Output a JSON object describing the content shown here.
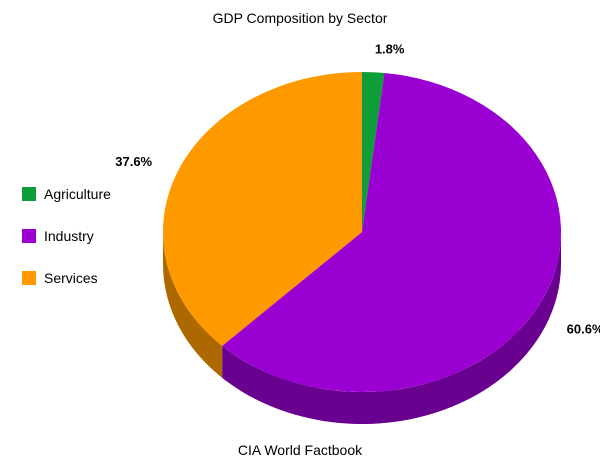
{
  "chart_data": {
    "type": "pie",
    "title": "GDP Composition by Sector",
    "source": "CIA World Factbook",
    "slices": [
      {
        "label": "Agriculture",
        "value": 1.8,
        "display": "1.8%",
        "color": "#0f9d3a"
      },
      {
        "label": "Industry",
        "value": 60.6,
        "display": "60.6%",
        "color": "#9b00d3"
      },
      {
        "label": "Services",
        "value": 37.6,
        "display": "37.6%",
        "color": "#ff9900"
      }
    ],
    "three_d": true,
    "legend_position": "left"
  }
}
